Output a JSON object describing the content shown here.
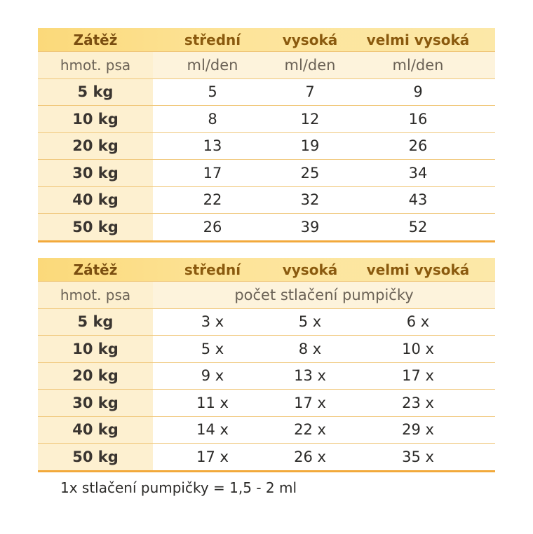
{
  "table1": {
    "head": [
      "Zátěž",
      "střední",
      "vysoká",
      "velmi vysoká"
    ],
    "sub": [
      "hmot. psa",
      "ml/den",
      "ml/den",
      "ml/den"
    ],
    "rows": [
      [
        "5 kg",
        "5",
        "7",
        "9"
      ],
      [
        "10 kg",
        "8",
        "12",
        "16"
      ],
      [
        "20 kg",
        "13",
        "19",
        "26"
      ],
      [
        "30 kg",
        "17",
        "25",
        "34"
      ],
      [
        "40 kg",
        "22",
        "32",
        "43"
      ],
      [
        "50 kg",
        "26",
        "39",
        "52"
      ]
    ]
  },
  "table2": {
    "head": [
      "Zátěž",
      "střední",
      "vysoká",
      "velmi vysoká"
    ],
    "sub_label": "hmot. psa",
    "sub_span": "počet stlačení pumpičky",
    "rows": [
      [
        "5 kg",
        "3 x",
        "5 x",
        "6 x"
      ],
      [
        "10 kg",
        "5 x",
        "8 x",
        "10 x"
      ],
      [
        "20 kg",
        "9 x",
        "13 x",
        "17 x"
      ],
      [
        "30 kg",
        "11 x",
        "17 x",
        "23 x"
      ],
      [
        "40 kg",
        "14 x",
        "22 x",
        "29 x"
      ],
      [
        "50 kg",
        "17 x",
        "26 x",
        "35 x"
      ]
    ]
  },
  "note": "1x stlačení pumpičky = 1,5 - 2 ml",
  "colors": {
    "header": "#fbd97a",
    "accent_line": "#f2a93b",
    "label_col": "#fdf0d0"
  }
}
